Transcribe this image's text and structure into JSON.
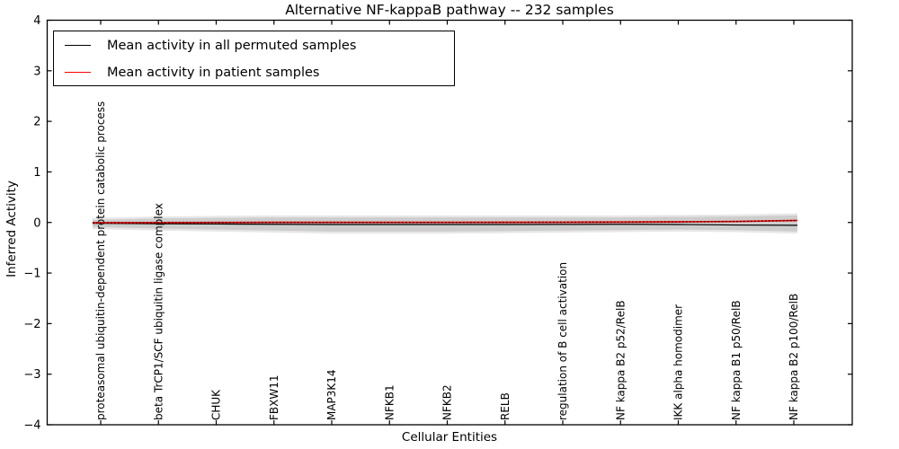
{
  "chart_data": {
    "type": "line",
    "title": "Alternative NF-kappaB pathway -- 232 samples",
    "xlabel": "Cellular Entities",
    "ylabel": "Inferred Activity",
    "ylim": [
      -4,
      4
    ],
    "yticks": [
      4,
      3,
      2,
      1,
      0,
      -1,
      -2,
      -3,
      -4
    ],
    "grid": false,
    "legend_position": "upper left",
    "categories": [
      "proteasomal ubiquitin-dependent protein catabolic process",
      "beta TrCP1/SCF ubiquitin ligase complex",
      "CHUK",
      "FBXW11",
      "MAP3K14",
      "NFKB1",
      "NFKB2",
      "RELB",
      "regulation of B cell activation",
      "NF kappa B2 p52/RelB",
      "IKK alpha homodimer",
      "NF kappa B1 p50/RelB",
      "NF kappa B2 p100/RelB"
    ],
    "series": [
      {
        "name": "Mean activity in all permuted samples",
        "color": "#000000",
        "style": "solid",
        "values": [
          -0.015,
          -0.025,
          -0.03,
          -0.035,
          -0.04,
          -0.04,
          -0.04,
          -0.04,
          -0.038,
          -0.035,
          -0.04,
          -0.05,
          -0.055
        ]
      },
      {
        "name": "Mean activity in patient samples",
        "color": "#ff0000",
        "style": "solid-with-black-dotted-overlay",
        "values": [
          -0.005,
          -0.002,
          0.0,
          0.002,
          0.002,
          0.002,
          0.002,
          0.003,
          0.005,
          0.008,
          0.012,
          0.02,
          0.04
        ]
      }
    ],
    "permutation_band": {
      "inner_color": "#cdcdcd",
      "outer_color": "#e7e7e7",
      "inner_top": [
        0.05,
        0.08,
        0.09,
        0.1,
        0.1,
        0.1,
        0.1,
        0.1,
        0.1,
        0.1,
        0.11,
        0.12,
        0.14
      ],
      "inner_bottom": [
        -0.09,
        -0.12,
        -0.14,
        -0.16,
        -0.18,
        -0.18,
        -0.18,
        -0.17,
        -0.16,
        -0.15,
        -0.14,
        -0.15,
        -0.18
      ],
      "outer_top": [
        0.09,
        0.12,
        0.13,
        0.14,
        0.14,
        0.14,
        0.14,
        0.14,
        0.14,
        0.14,
        0.15,
        0.16,
        0.18
      ],
      "outer_bottom": [
        -0.13,
        -0.16,
        -0.18,
        -0.2,
        -0.22,
        -0.22,
        -0.22,
        -0.21,
        -0.2,
        -0.19,
        -0.18,
        -0.19,
        -0.22
      ]
    }
  }
}
